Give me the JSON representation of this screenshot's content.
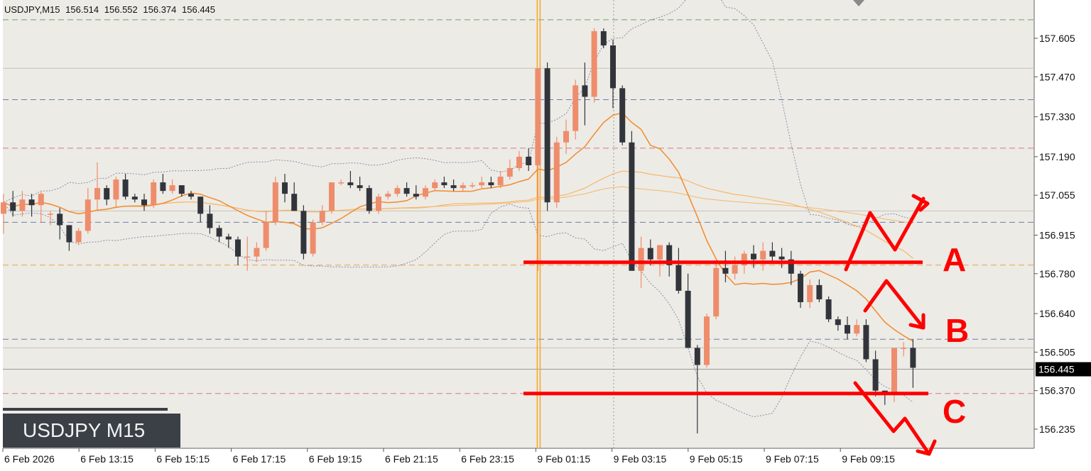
{
  "header": {
    "symbol": "USDJPY,M15",
    "open": "156.514",
    "high": "156.552",
    "low": "156.374",
    "close": "156.445"
  },
  "watermark": "USDJPY M15",
  "current_price_label": "156.445",
  "colors": {
    "background": "#edebe6",
    "bull": "#ee8d6c",
    "bear": "#31353b",
    "ma_fast": "#f28b2c",
    "ma_slow": "#f5b86a",
    "bollinger": "#8a8ca8",
    "annotation": "#ff0000",
    "marker": "#f5a623"
  },
  "chart_data": {
    "type": "candlestick",
    "ylim": [
      156.15,
      157.72
    ],
    "yticks": [
      "157.605",
      "157.470",
      "157.330",
      "157.190",
      "157.055",
      "156.915",
      "156.780",
      "156.640",
      "156.505",
      "156.370",
      "156.235"
    ],
    "xticks": [
      "6 Feb 2026",
      "6 Feb 13:15",
      "6 Feb 15:15",
      "6 Feb 17:15",
      "6 Feb 19:15",
      "6 Feb 21:15",
      "6 Feb 23:15",
      "9 Feb 01:15",
      "9 Feb 03:15",
      "9 Feb 05:15",
      "9 Feb 07:15",
      "9 Feb 09:15"
    ],
    "current_price": 156.445,
    "ohlc": [
      [
        156.99,
        157.06,
        156.92,
        157.03
      ],
      [
        157.03,
        157.07,
        156.98,
        157.0
      ],
      [
        157.0,
        157.07,
        156.98,
        157.04
      ],
      [
        157.04,
        157.06,
        156.98,
        157.02
      ],
      [
        157.02,
        157.07,
        156.96,
        157.06
      ],
      [
        156.99,
        157.0,
        156.95,
        156.99
      ],
      [
        156.99,
        157.01,
        156.9,
        156.95
      ],
      [
        156.95,
        156.95,
        156.86,
        156.89
      ],
      [
        156.89,
        156.94,
        156.88,
        156.93
      ],
      [
        156.93,
        157.08,
        156.92,
        157.04
      ],
      [
        157.04,
        157.17,
        157.0,
        157.08
      ],
      [
        157.08,
        157.09,
        157.02,
        157.04
      ],
      [
        157.04,
        157.12,
        157.01,
        157.11
      ],
      [
        157.11,
        157.13,
        157.04,
        157.05
      ],
      [
        157.05,
        157.06,
        157.03,
        157.04
      ],
      [
        157.04,
        157.06,
        157.0,
        157.02
      ],
      [
        157.02,
        157.11,
        157.01,
        157.1
      ],
      [
        157.1,
        157.13,
        157.06,
        157.07
      ],
      [
        157.07,
        157.11,
        157.06,
        157.09
      ],
      [
        157.09,
        157.09,
        157.05,
        157.06
      ],
      [
        157.06,
        157.07,
        157.04,
        157.05
      ],
      [
        157.05,
        157.05,
        156.96,
        156.99
      ],
      [
        156.99,
        157.02,
        156.92,
        156.94
      ],
      [
        156.94,
        156.95,
        156.89,
        156.91
      ],
      [
        156.91,
        156.92,
        156.87,
        156.9
      ],
      [
        156.9,
        156.91,
        156.81,
        156.84
      ],
      [
        156.84,
        156.91,
        156.79,
        156.84
      ],
      [
        156.84,
        156.89,
        156.82,
        156.87
      ],
      [
        156.87,
        157.0,
        156.86,
        156.96
      ],
      [
        156.96,
        157.12,
        156.95,
        157.1
      ],
      [
        157.1,
        157.13,
        157.03,
        157.06
      ],
      [
        157.06,
        157.1,
        157.0,
        157.0
      ],
      [
        157.0,
        157.02,
        156.83,
        156.85
      ],
      [
        156.85,
        156.97,
        156.84,
        156.96
      ],
      [
        156.96,
        157.02,
        156.95,
        157.0
      ],
      [
        157.0,
        157.1,
        156.99,
        157.1
      ],
      [
        157.1,
        157.11,
        157.09,
        157.1
      ],
      [
        157.1,
        157.14,
        157.08,
        157.09
      ],
      [
        157.09,
        157.12,
        157.07,
        157.08
      ],
      [
        157.08,
        157.09,
        156.99,
        157.0
      ],
      [
        157.0,
        157.06,
        156.99,
        157.05
      ],
      [
        157.05,
        157.07,
        157.04,
        157.06
      ],
      [
        157.06,
        157.09,
        157.05,
        157.08
      ],
      [
        157.08,
        157.1,
        157.05,
        157.06
      ],
      [
        157.06,
        157.09,
        157.04,
        157.05
      ],
      [
        157.05,
        157.09,
        157.04,
        157.08
      ],
      [
        157.08,
        157.11,
        157.07,
        157.1
      ],
      [
        157.1,
        157.12,
        157.08,
        157.09
      ],
      [
        157.09,
        157.11,
        157.07,
        157.08
      ],
      [
        157.08,
        157.1,
        157.07,
        157.09
      ],
      [
        157.09,
        157.1,
        157.08,
        157.09
      ],
      [
        157.09,
        157.12,
        157.08,
        157.1
      ],
      [
        157.1,
        157.12,
        157.08,
        157.09
      ],
      [
        157.09,
        157.14,
        157.08,
        157.12
      ],
      [
        157.12,
        157.18,
        157.11,
        157.15
      ],
      [
        157.15,
        157.21,
        157.14,
        157.19
      ],
      [
        157.19,
        157.22,
        157.14,
        157.16
      ],
      [
        157.16,
        157.5,
        156.79,
        157.5
      ],
      [
        157.5,
        157.52,
        157.0,
        157.03
      ],
      [
        157.03,
        157.26,
        157.01,
        157.24
      ],
      [
        157.24,
        157.32,
        157.2,
        157.28
      ],
      [
        157.28,
        157.46,
        157.25,
        157.44
      ],
      [
        157.44,
        157.52,
        157.3,
        157.4
      ],
      [
        157.4,
        157.64,
        157.38,
        157.63
      ],
      [
        157.63,
        157.64,
        157.57,
        157.58
      ],
      [
        157.58,
        157.6,
        157.36,
        157.43
      ],
      [
        157.43,
        157.44,
        157.23,
        157.24
      ],
      [
        157.24,
        157.28,
        156.8,
        156.79
      ],
      [
        156.79,
        156.91,
        156.73,
        156.87
      ],
      [
        156.87,
        156.9,
        156.81,
        156.83
      ],
      [
        156.83,
        156.88,
        156.77,
        156.88
      ],
      [
        156.88,
        156.89,
        156.77,
        156.81
      ],
      [
        156.81,
        156.87,
        156.71,
        156.72
      ],
      [
        156.72,
        156.78,
        156.52,
        156.52
      ],
      [
        156.52,
        156.53,
        156.22,
        156.46
      ],
      [
        156.46,
        156.64,
        156.45,
        156.63
      ],
      [
        156.63,
        156.82,
        156.62,
        156.8
      ],
      [
        156.8,
        156.86,
        156.75,
        156.78
      ],
      [
        156.78,
        156.84,
        156.76,
        156.81
      ],
      [
        156.81,
        156.86,
        156.78,
        156.85
      ],
      [
        156.85,
        156.88,
        156.8,
        156.83
      ],
      [
        156.83,
        156.89,
        156.79,
        156.86
      ],
      [
        156.86,
        156.89,
        156.82,
        156.84
      ],
      [
        156.84,
        156.87,
        156.8,
        156.83
      ],
      [
        156.83,
        156.86,
        156.74,
        156.78
      ],
      [
        156.78,
        156.79,
        156.66,
        156.68
      ],
      [
        156.68,
        156.76,
        156.66,
        156.74
      ],
      [
        156.74,
        156.76,
        156.68,
        156.69
      ],
      [
        156.69,
        156.7,
        156.61,
        156.62
      ],
      [
        156.62,
        156.63,
        156.58,
        156.6
      ],
      [
        156.6,
        156.63,
        156.55,
        156.57
      ],
      [
        156.57,
        156.62,
        156.56,
        156.6
      ],
      [
        156.6,
        156.62,
        156.47,
        156.48
      ],
      [
        156.48,
        156.51,
        156.35,
        156.37
      ],
      [
        156.37,
        156.37,
        156.32,
        156.36
      ],
      [
        156.36,
        156.52,
        156.33,
        156.52
      ],
      [
        156.52,
        156.54,
        156.49,
        156.52
      ],
      [
        156.52,
        156.55,
        156.38,
        156.45
      ]
    ],
    "markers": [
      {
        "type": "vertical-line",
        "color": "orange",
        "time_index": 57
      },
      {
        "type": "dotted-vertical-line",
        "color": "gray",
        "time_index": 65
      }
    ],
    "annotations": [
      {
        "label": "A",
        "description": "price moves up from 156.82"
      },
      {
        "label": "B",
        "description": "price rises then falls"
      },
      {
        "label": "C",
        "description": "price falls below 156.36"
      }
    ],
    "legend": "none",
    "grid": false
  }
}
